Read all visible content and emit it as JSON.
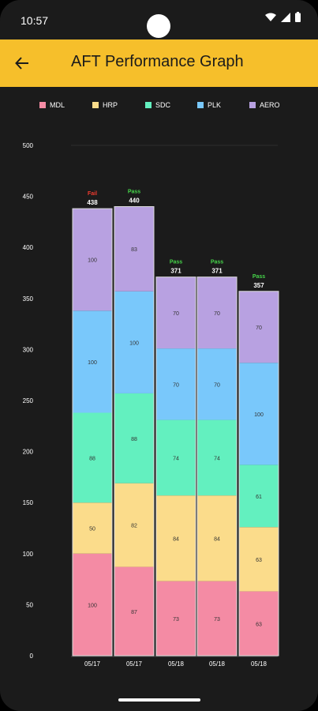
{
  "status_bar": {
    "time": "10:57"
  },
  "header": {
    "title": "AFT Performance Graph"
  },
  "colors": {
    "MDL": "#f48ba4",
    "HRP": "#fbdc8b",
    "SDC": "#63f0bf",
    "PLK": "#79c8fb",
    "AERO": "#b8a1e1",
    "pass": "#46d34a",
    "fail": "#f03b2f",
    "app_bar": "#f6bf2b"
  },
  "chart_data": {
    "type": "bar",
    "stacked": true,
    "categories": [
      "05/17",
      "05/17",
      "05/18",
      "05/18",
      "05/18"
    ],
    "series": [
      {
        "name": "MDL",
        "values": [
          100,
          87,
          73,
          73,
          63
        ]
      },
      {
        "name": "HRP",
        "values": [
          50,
          82,
          84,
          84,
          63
        ]
      },
      {
        "name": "SDC",
        "values": [
          88,
          88,
          74,
          74,
          61
        ]
      },
      {
        "name": "PLK",
        "values": [
          100,
          100,
          70,
          70,
          100
        ]
      },
      {
        "name": "AERO",
        "values": [
          100,
          83,
          70,
          70,
          70
        ]
      }
    ],
    "totals": [
      438,
      440,
      371,
      371,
      357
    ],
    "status": [
      "Fail",
      "Pass",
      "Pass",
      "Pass",
      "Pass"
    ],
    "ylim": [
      0,
      500
    ],
    "yticks": [
      0,
      50,
      100,
      150,
      200,
      250,
      300,
      350,
      400,
      450,
      500
    ],
    "legend_position": "top",
    "grid": true
  }
}
